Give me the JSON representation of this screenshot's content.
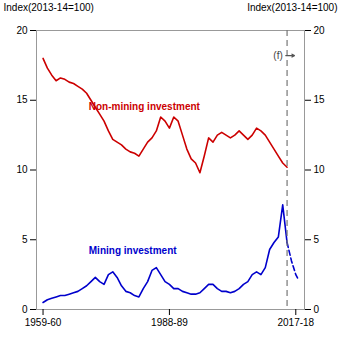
{
  "chart_data": {
    "type": "line",
    "ylabel": "Index(2013-14=100)",
    "y2label": "Index(2013-14=100)",
    "xlim": [
      1958.0,
      2019.5
    ],
    "xticks": [
      {
        "value": 1959.5,
        "label": "1959-60"
      },
      {
        "value": 1988.5,
        "label": "1988-89"
      },
      {
        "value": 2017.5,
        "label": "2017-18"
      }
    ],
    "ylim": [
      0,
      20
    ],
    "yticks": [
      0,
      5,
      10,
      15,
      20
    ],
    "y2lim": [
      0,
      20
    ],
    "y2ticks": [
      0,
      5,
      10,
      15,
      20
    ],
    "grid": false,
    "vline": 2015.5,
    "series": [
      {
        "name": "Non-mining investment",
        "color": "#cc0000",
        "line_style": "solid",
        "x": [
          1959.5,
          1960.5,
          1961.5,
          1962.5,
          1963.5,
          1964.5,
          1965.5,
          1966.5,
          1967.5,
          1968.5,
          1969.5,
          1970.5,
          1971.5,
          1972.5,
          1973.5,
          1974.5,
          1975.5,
          1976.5,
          1977.5,
          1978.5,
          1979.5,
          1980.5,
          1981.5,
          1982.5,
          1983.5,
          1984.5,
          1985.5,
          1986.5,
          1987.5,
          1988.5,
          1989.5,
          1990.5,
          1991.5,
          1992.5,
          1993.5,
          1994.5,
          1995.5,
          1996.5,
          1997.5,
          1998.5,
          1999.5,
          2000.5,
          2001.5,
          2002.5,
          2003.5,
          2004.5,
          2005.5,
          2006.5,
          2007.5,
          2008.5,
          2009.5,
          2010.5,
          2011.5,
          2012.5,
          2013.5,
          2014.5,
          2015.5
        ],
        "values": [
          18.0,
          17.3,
          16.8,
          16.4,
          16.6,
          16.5,
          16.3,
          16.2,
          16.0,
          15.8,
          15.5,
          15.0,
          14.5,
          14.0,
          13.5,
          12.8,
          12.2,
          12.0,
          11.8,
          11.5,
          11.3,
          11.2,
          11.0,
          11.5,
          12.0,
          12.3,
          12.8,
          13.8,
          13.5,
          13.0,
          13.8,
          13.5,
          12.5,
          11.5,
          10.8,
          10.5,
          9.8,
          11.0,
          12.3,
          12.0,
          12.5,
          12.7,
          12.5,
          12.3,
          12.5,
          12.8,
          12.5,
          12.2,
          12.5,
          13.0,
          12.8,
          12.5,
          12.0,
          11.5,
          11.0,
          10.5,
          10.2
        ]
      },
      {
        "name": "Mining investment",
        "color": "#0000cc",
        "line_style": "solid",
        "x": [
          1959.5,
          1960.5,
          1961.5,
          1962.5,
          1963.5,
          1964.5,
          1965.5,
          1966.5,
          1967.5,
          1968.5,
          1969.5,
          1970.5,
          1971.5,
          1972.5,
          1973.5,
          1974.5,
          1975.5,
          1976.5,
          1977.5,
          1978.5,
          1979.5,
          1980.5,
          1981.5,
          1982.5,
          1983.5,
          1984.5,
          1985.5,
          1986.5,
          1987.5,
          1988.5,
          1989.5,
          1990.5,
          1991.5,
          1992.5,
          1993.5,
          1994.5,
          1995.5,
          1996.5,
          1997.5,
          1998.5,
          1999.5,
          2000.5,
          2001.5,
          2002.5,
          2003.5,
          2004.5,
          2005.5,
          2006.5,
          2007.5,
          2008.5,
          2009.5,
          2010.5,
          2011.5,
          2012.5,
          2013.5,
          2014.5,
          2015.5
        ],
        "values": [
          0.5,
          0.7,
          0.8,
          0.9,
          1.0,
          1.0,
          1.1,
          1.2,
          1.3,
          1.5,
          1.7,
          2.0,
          2.3,
          2.0,
          1.8,
          2.5,
          2.7,
          2.3,
          1.7,
          1.3,
          1.2,
          1.0,
          0.9,
          1.5,
          2.0,
          2.8,
          3.0,
          2.5,
          2.0,
          1.8,
          1.5,
          1.5,
          1.3,
          1.2,
          1.1,
          1.1,
          1.2,
          1.5,
          1.8,
          1.8,
          1.5,
          1.3,
          1.3,
          1.2,
          1.3,
          1.5,
          1.8,
          2.0,
          2.5,
          2.7,
          2.5,
          3.0,
          4.3,
          4.8,
          5.2,
          7.5,
          4.8
        ]
      },
      {
        "name": "Mining investment",
        "color": "#0000cc",
        "line_style": "dashed",
        "x": [
          2015.5,
          2016.5,
          2017.5,
          2018.0
        ],
        "values": [
          4.8,
          3.5,
          2.5,
          2.2
        ]
      }
    ],
    "annotations": [
      {
        "text": "Non-mining investment",
        "x": 1970,
        "y": 14.5,
        "color": "#cc0000"
      },
      {
        "text": "Mining investment",
        "x": 1970,
        "y": 4.2,
        "color": "#0000cc"
      },
      {
        "text": "(f)",
        "x": 2015.2,
        "y": 18.2,
        "arrow_to": 2017.2
      }
    ]
  }
}
